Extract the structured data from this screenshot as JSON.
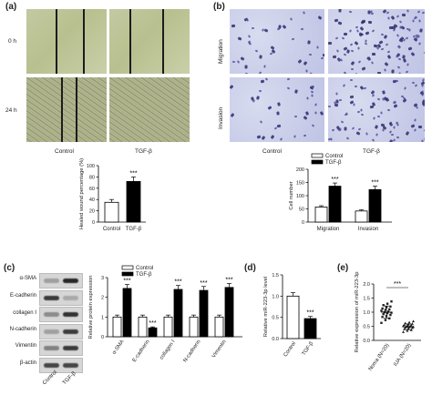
{
  "panels": {
    "a": "(a)",
    "b": "(b)",
    "c": "(c)",
    "d": "(d)",
    "e": "(e)"
  },
  "wound_healing": {
    "rows": [
      "0 h",
      "24 h"
    ],
    "columns": [
      "Control",
      "TGF-β"
    ]
  },
  "transwell": {
    "rows": [
      "Migration",
      "Invasion"
    ],
    "columns": [
      "Control",
      "TGF-β"
    ]
  },
  "blot": {
    "proteins": [
      "α-SMA",
      "E-cadherin",
      "collagen Ⅰ",
      "N-cadherin",
      "Vimentin",
      "β-actin"
    ],
    "columns": [
      "Control",
      "TGF-β"
    ]
  },
  "colors": {
    "control": "#ffffff",
    "tgf": "#000000",
    "outline": "#000000"
  },
  "chart_data": [
    {
      "id": "wound",
      "type": "bar",
      "categories": [
        "Control",
        "TGF-β"
      ],
      "values": [
        35,
        72
      ],
      "errors": [
        5,
        8
      ],
      "ylabel": "Healed wound percentage (%)",
      "ylim": [
        0,
        100
      ],
      "yticks": [
        "0",
        "20",
        "40",
        "60",
        "80",
        "100"
      ],
      "annotations": [
        "",
        "***"
      ]
    },
    {
      "id": "cellnum",
      "type": "bar",
      "categories": [
        "Migration",
        "Invasion"
      ],
      "series": [
        {
          "name": "Control",
          "values": [
            57,
            42
          ],
          "errors": [
            5,
            4
          ]
        },
        {
          "name": "TGF-β",
          "values": [
            136,
            123
          ],
          "errors": [
            12,
            13
          ]
        }
      ],
      "ylabel": "Cell number",
      "ylim": [
        0,
        200
      ],
      "yticks": [
        "0",
        "50",
        "100",
        "150",
        "200"
      ],
      "annotations": [
        "***",
        "***"
      ],
      "legend": "top-left"
    },
    {
      "id": "protein",
      "type": "bar",
      "categories": [
        "α-SMA",
        "E-cadherin",
        "collagen Ⅰ",
        "N-cadherin",
        "Vimentin"
      ],
      "series": [
        {
          "name": "Control",
          "values": [
            1,
            1,
            1,
            1,
            1
          ],
          "errors": [
            0.1,
            0.1,
            0.1,
            0.1,
            0.1
          ]
        },
        {
          "name": "TGF-β",
          "values": [
            2.45,
            0.45,
            2.4,
            2.35,
            2.5
          ],
          "errors": [
            0.2,
            0.05,
            0.2,
            0.2,
            0.2
          ]
        }
      ],
      "ylabel": "Relative protein expression",
      "ylim": [
        0,
        3
      ],
      "yticks": [
        "0",
        "1",
        "2",
        "3"
      ],
      "annotations": [
        "***",
        "***",
        "***",
        "***",
        "***"
      ],
      "legend": "top-center"
    },
    {
      "id": "mir",
      "type": "bar",
      "categories": [
        "Control",
        "TGF-β"
      ],
      "values": [
        1.0,
        0.47
      ],
      "errors": [
        0.08,
        0.05
      ],
      "ylabel": "Relative miR-223-3p level",
      "ylim": [
        0,
        1.5
      ],
      "yticks": [
        "0.0",
        "0.5",
        "1.0",
        "1.5"
      ],
      "annotations": [
        "",
        "***"
      ]
    },
    {
      "id": "scatter",
      "type": "scatter",
      "categories": [
        "Noma (N=20)",
        "IUA (N=20)"
      ],
      "means": [
        1.0,
        0.48
      ],
      "sd": [
        0.22,
        0.1
      ],
      "points": [
        [
          0.62,
          0.72,
          0.78,
          0.83,
          0.86,
          0.9,
          0.93,
          0.96,
          0.98,
          1.0,
          1.02,
          1.05,
          1.08,
          1.1,
          1.13,
          1.17,
          1.2,
          1.25,
          1.3,
          1.38
        ],
        [
          0.3,
          0.34,
          0.37,
          0.4,
          0.42,
          0.44,
          0.45,
          0.47,
          0.48,
          0.49,
          0.5,
          0.51,
          0.52,
          0.54,
          0.55,
          0.57,
          0.59,
          0.61,
          0.64,
          0.68
        ]
      ],
      "ylabel": "Relative expression of miR-223-3p",
      "ylim": [
        0,
        2.0
      ],
      "yticks": [
        "0.0",
        "0.5",
        "1.0",
        "1.5",
        "2.0"
      ],
      "annotation": "***"
    }
  ]
}
